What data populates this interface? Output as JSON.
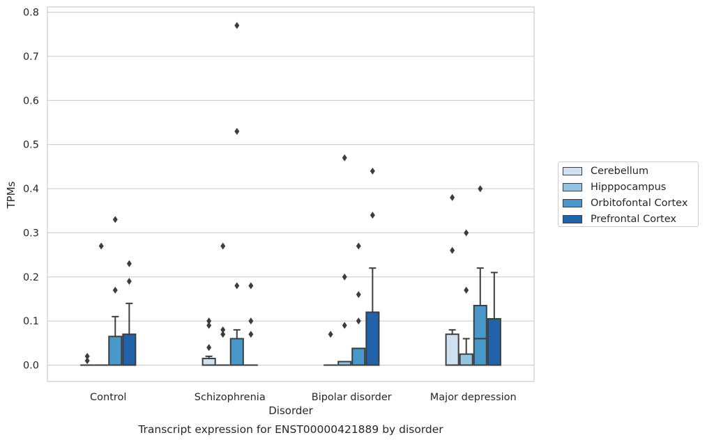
{
  "chart_data": {
    "type": "box",
    "title": "Transcript expression for ENST00000421889 by disorder",
    "xlabel": "Disorder",
    "ylabel": "TPMs",
    "ylim": [
      -0.037,
      0.812
    ],
    "yticks": [
      "0.0",
      "0.1",
      "0.2",
      "0.3",
      "0.4",
      "0.5",
      "0.6",
      "0.7",
      "0.8"
    ],
    "grid": true,
    "legend_position": "right",
    "categories": [
      "Control",
      "Schizophrenia",
      "Bipolar disorder",
      "Major depression"
    ],
    "series": [
      {
        "name": "Cerebellum",
        "color": "#d0e1f2",
        "boxes": [
          {
            "q1": 0,
            "median": 0,
            "q3": 0,
            "whisker_low": 0,
            "whisker_high": 0,
            "outliers": [
              0.01,
              0.02
            ]
          },
          {
            "q1": 0,
            "median": 0,
            "q3": 0.015,
            "whisker_low": 0,
            "whisker_high": 0.02,
            "outliers": [
              0.04,
              0.09,
              0.1
            ]
          },
          {
            "q1": 0,
            "median": 0,
            "q3": 0,
            "whisker_low": 0,
            "whisker_high": 0,
            "outliers": [
              0.07
            ]
          },
          {
            "q1": 0,
            "median": 0,
            "q3": 0.07,
            "whisker_low": 0,
            "whisker_high": 0.08,
            "outliers": [
              0.26,
              0.38
            ]
          }
        ]
      },
      {
        "name": "Hipppocampus",
        "color": "#94c4df",
        "boxes": [
          {
            "q1": 0,
            "median": 0,
            "q3": 0,
            "whisker_low": 0,
            "whisker_high": 0,
            "outliers": [
              0.27
            ]
          },
          {
            "q1": 0,
            "median": 0,
            "q3": 0,
            "whisker_low": 0,
            "whisker_high": 0,
            "outliers": [
              0.07,
              0.08,
              0.27
            ]
          },
          {
            "q1": 0,
            "median": 0,
            "q3": 0.008,
            "whisker_low": 0,
            "whisker_high": 0.008,
            "outliers": [
              0.09,
              0.2,
              0.47
            ]
          },
          {
            "q1": 0,
            "median": 0,
            "q3": 0.025,
            "whisker_low": 0,
            "whisker_high": 0.06,
            "outliers": [
              0.17,
              0.3
            ]
          }
        ]
      },
      {
        "name": "Orbitofontal Cortex",
        "color": "#4a98c9",
        "boxes": [
          {
            "q1": 0,
            "median": 0,
            "q3": 0.065,
            "whisker_low": 0,
            "whisker_high": 0.11,
            "outliers": [
              0.17,
              0.33
            ]
          },
          {
            "q1": 0,
            "median": 0,
            "q3": 0.06,
            "whisker_low": 0,
            "whisker_high": 0.08,
            "outliers": [
              0.18,
              0.53,
              0.77
            ]
          },
          {
            "q1": 0,
            "median": 0,
            "q3": 0.038,
            "whisker_low": 0,
            "whisker_high": 0.038,
            "outliers": [
              0.1,
              0.16,
              0.27
            ]
          },
          {
            "q1": 0,
            "median": 0.06,
            "q3": 0.135,
            "whisker_low": 0,
            "whisker_high": 0.22,
            "outliers": [
              0.4
            ]
          }
        ]
      },
      {
        "name": "Prefrontal Cortex",
        "color": "#2163aa",
        "boxes": [
          {
            "q1": 0,
            "median": 0,
            "q3": 0.07,
            "whisker_low": 0,
            "whisker_high": 0.14,
            "outliers": [
              0.19,
              0.23
            ]
          },
          {
            "q1": 0,
            "median": 0,
            "q3": 0,
            "whisker_low": 0,
            "whisker_high": 0,
            "outliers": [
              0.07,
              0.1,
              0.18
            ]
          },
          {
            "q1": 0,
            "median": 0,
            "q3": 0.12,
            "whisker_low": 0,
            "whisker_high": 0.22,
            "outliers": [
              0.34,
              0.44
            ]
          },
          {
            "q1": 0,
            "median": 0,
            "q3": 0.105,
            "whisker_low": 0,
            "whisker_high": 0.21,
            "outliers": []
          }
        ]
      }
    ]
  }
}
